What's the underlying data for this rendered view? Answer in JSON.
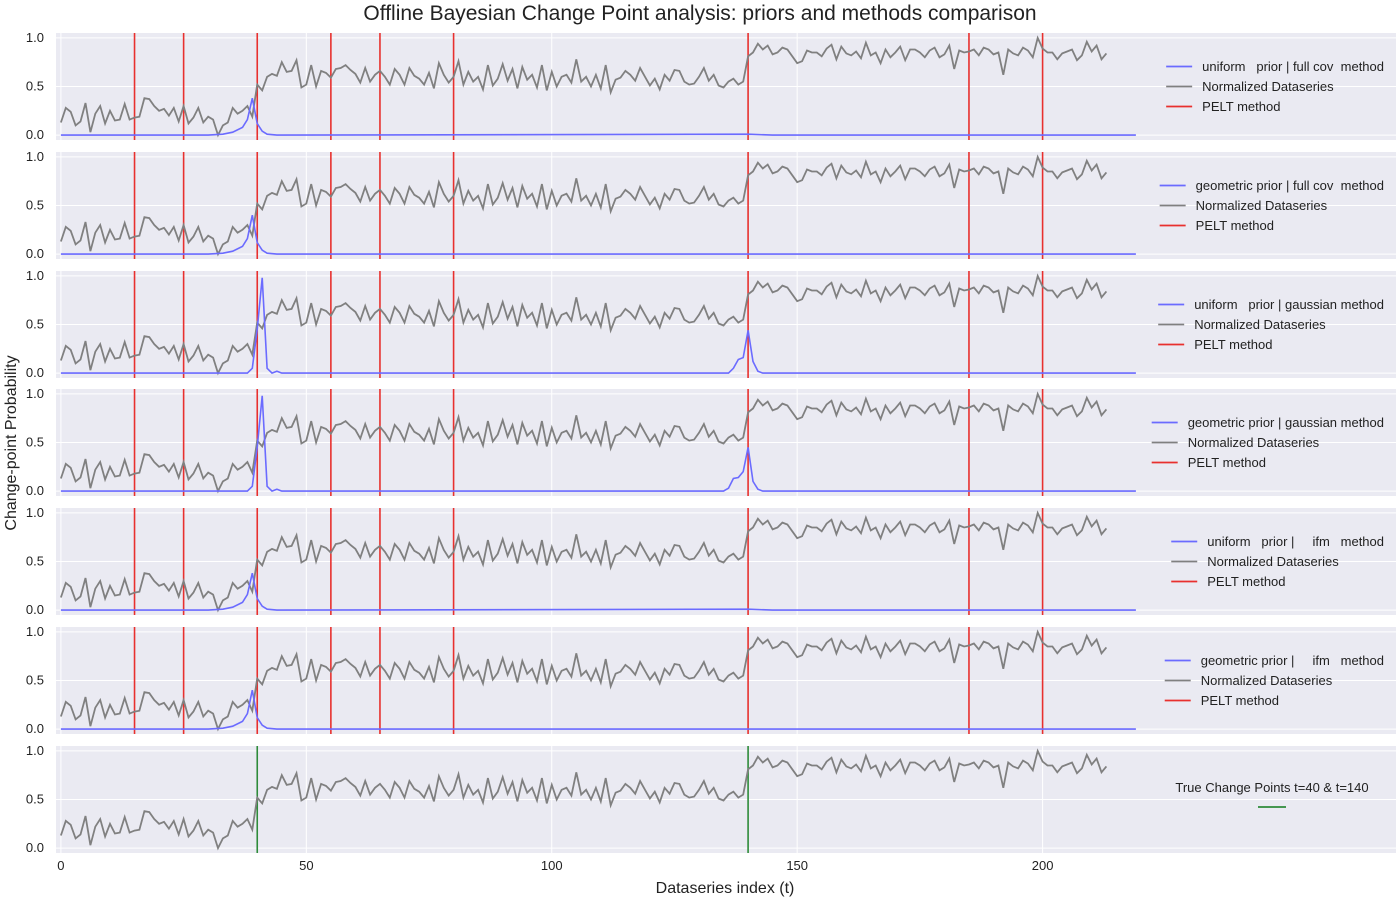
{
  "chart_data": {
    "type": "line",
    "title": "Offline Bayesian Change Point analysis: priors and methods comparison",
    "xlabel": "Dataseries index (t)",
    "ylabel": "Change-point Probability",
    "xlim": [
      -1,
      272
    ],
    "ylim": [
      -0.05,
      1.05
    ],
    "x_ticks": [
      0,
      50,
      100,
      150,
      200
    ],
    "y_ticks": [
      0.0,
      0.5,
      1.0
    ],
    "y_tick_labels": [
      "0.0",
      "0.5",
      "1.0"
    ],
    "grid": true,
    "colors": {
      "probability": "#6b6bff",
      "dataseries": "#808080",
      "pelt": "#e8302e",
      "true_cp": "#2e8b3a",
      "panel_bg": "#eaeaf2",
      "grid": "#ffffff"
    },
    "normalized_series": [
      0.13,
      0.28,
      0.24,
      0.1,
      0.14,
      0.33,
      0.03,
      0.22,
      0.3,
      0.12,
      0.25,
      0.15,
      0.16,
      0.32,
      0.16,
      0.18,
      0.19,
      0.38,
      0.37,
      0.3,
      0.25,
      0.27,
      0.2,
      0.28,
      0.14,
      0.3,
      0.12,
      0.18,
      0.28,
      0.13,
      0.19,
      0.16,
      0.0,
      0.1,
      0.13,
      0.28,
      0.22,
      0.25,
      0.3,
      0.19,
      0.52,
      0.46,
      0.6,
      0.63,
      0.61,
      0.75,
      0.65,
      0.66,
      0.77,
      0.49,
      0.52,
      0.72,
      0.5,
      0.66,
      0.64,
      0.59,
      0.68,
      0.69,
      0.72,
      0.67,
      0.63,
      0.54,
      0.69,
      0.55,
      0.62,
      0.66,
      0.6,
      0.52,
      0.68,
      0.62,
      0.52,
      0.69,
      0.61,
      0.58,
      0.52,
      0.64,
      0.48,
      0.74,
      0.62,
      0.54,
      0.6,
      0.76,
      0.52,
      0.65,
      0.55,
      0.6,
      0.47,
      0.72,
      0.51,
      0.58,
      0.73,
      0.56,
      0.68,
      0.48,
      0.7,
      0.57,
      0.62,
      0.49,
      0.72,
      0.46,
      0.65,
      0.5,
      0.6,
      0.62,
      0.54,
      0.78,
      0.55,
      0.6,
      0.5,
      0.62,
      0.48,
      0.72,
      0.44,
      0.57,
      0.59,
      0.66,
      0.62,
      0.56,
      0.69,
      0.6,
      0.51,
      0.58,
      0.47,
      0.62,
      0.56,
      0.67,
      0.66,
      0.55,
      0.52,
      0.53,
      0.6,
      0.69,
      0.56,
      0.62,
      0.51,
      0.49,
      0.55,
      0.58,
      0.52,
      0.55,
      0.81,
      0.85,
      0.94,
      0.88,
      0.92,
      0.83,
      0.85,
      0.9,
      0.88,
      0.81,
      0.74,
      0.76,
      0.87,
      0.85,
      0.85,
      0.81,
      0.89,
      0.93,
      0.78,
      0.91,
      0.84,
      0.82,
      0.86,
      0.79,
      0.95,
      0.82,
      0.85,
      0.74,
      0.88,
      0.8,
      0.85,
      0.91,
      0.77,
      0.88,
      0.88,
      0.85,
      0.8,
      0.87,
      0.9,
      0.8,
      0.83,
      0.92,
      0.68,
      0.87,
      0.85,
      0.86,
      0.88,
      0.82,
      0.9,
      0.88,
      0.83,
      0.85,
      0.62,
      0.88,
      0.84,
      0.82,
      0.9,
      0.87,
      0.8,
      1.0,
      0.89,
      0.85,
      0.85,
      0.78,
      0.84,
      0.86,
      0.88,
      0.77,
      0.82,
      0.96,
      0.86,
      0.92,
      0.78,
      0.84
    ],
    "panels": [
      {
        "name": "uniform prior | full cov method",
        "legend": [
          "uniform   prior | full cov  method",
          "Normalized Dataseries",
          "PELT method"
        ],
        "probability": [
          [
            0,
            0.0
          ],
          [
            30,
            0.0
          ],
          [
            33,
            0.01
          ],
          [
            35,
            0.03
          ],
          [
            37,
            0.08
          ],
          [
            38,
            0.16
          ],
          [
            39,
            0.38
          ],
          [
            40,
            0.12
          ],
          [
            41,
            0.04
          ],
          [
            42,
            0.01
          ],
          [
            44,
            0.0
          ],
          [
            140,
            0.01
          ],
          [
            145,
            0.0
          ],
          [
            219,
            0.0
          ]
        ],
        "change_points": [
          15,
          25,
          40,
          55,
          65,
          80,
          140,
          185,
          200
        ]
      },
      {
        "name": "geometric prior | full cov method",
        "legend": [
          "geometric prior | full cov  method",
          "Normalized Dataseries",
          "PELT method"
        ],
        "probability": [
          [
            0,
            0.0
          ],
          [
            30,
            0.0
          ],
          [
            33,
            0.01
          ],
          [
            35,
            0.03
          ],
          [
            37,
            0.08
          ],
          [
            38,
            0.16
          ],
          [
            39,
            0.4
          ],
          [
            40,
            0.12
          ],
          [
            41,
            0.04
          ],
          [
            42,
            0.01
          ],
          [
            44,
            0.0
          ],
          [
            219,
            0.0
          ]
        ],
        "change_points": [
          15,
          25,
          40,
          55,
          65,
          80,
          140,
          185,
          200
        ]
      },
      {
        "name": "uniform prior | gaussian method",
        "legend": [
          "uniform   prior | gaussian method",
          "Normalized Dataseries",
          "PELT method"
        ],
        "probability": [
          [
            0,
            0.0
          ],
          [
            38,
            0.0
          ],
          [
            39,
            0.05
          ],
          [
            40,
            0.45
          ],
          [
            41,
            0.98
          ],
          [
            42,
            0.05
          ],
          [
            43,
            0.0
          ],
          [
            44,
            0.02
          ],
          [
            45,
            0.0
          ],
          [
            136,
            0.0
          ],
          [
            137,
            0.05
          ],
          [
            138,
            0.14
          ],
          [
            139,
            0.16
          ],
          [
            140,
            0.44
          ],
          [
            141,
            0.12
          ],
          [
            142,
            0.02
          ],
          [
            143,
            0.0
          ],
          [
            219,
            0.0
          ]
        ],
        "change_points": [
          15,
          25,
          40,
          55,
          65,
          80,
          140,
          185,
          200
        ]
      },
      {
        "name": "geometric prior | gaussian method",
        "legend": [
          "geometric prior | gaussian method",
          "Normalized Dataseries",
          "PELT method"
        ],
        "probability": [
          [
            0,
            0.0
          ],
          [
            38,
            0.0
          ],
          [
            39,
            0.05
          ],
          [
            40,
            0.45
          ],
          [
            41,
            0.98
          ],
          [
            42,
            0.05
          ],
          [
            43,
            0.0
          ],
          [
            44,
            0.02
          ],
          [
            45,
            0.0
          ],
          [
            135,
            0.0
          ],
          [
            136,
            0.03
          ],
          [
            137,
            0.13
          ],
          [
            138,
            0.14
          ],
          [
            139,
            0.2
          ],
          [
            140,
            0.45
          ],
          [
            141,
            0.1
          ],
          [
            142,
            0.02
          ],
          [
            143,
            0.0
          ],
          [
            219,
            0.0
          ]
        ],
        "change_points": [
          15,
          25,
          40,
          55,
          65,
          80,
          140,
          185,
          200
        ]
      },
      {
        "name": "uniform prior | ifm method",
        "legend": [
          "uniform   prior |     ifm   method",
          "Normalized Dataseries",
          "PELT method"
        ],
        "probability": [
          [
            0,
            0.0
          ],
          [
            30,
            0.0
          ],
          [
            33,
            0.01
          ],
          [
            35,
            0.03
          ],
          [
            37,
            0.08
          ],
          [
            38,
            0.16
          ],
          [
            39,
            0.38
          ],
          [
            40,
            0.12
          ],
          [
            41,
            0.04
          ],
          [
            42,
            0.01
          ],
          [
            44,
            0.0
          ],
          [
            140,
            0.01
          ],
          [
            145,
            0.0
          ],
          [
            219,
            0.0
          ]
        ],
        "change_points": [
          15,
          25,
          40,
          55,
          65,
          80,
          140,
          185,
          200
        ]
      },
      {
        "name": "geometric prior | ifm method",
        "legend": [
          "geometric prior |     ifm   method",
          "Normalized Dataseries",
          "PELT method"
        ],
        "probability": [
          [
            0,
            0.0
          ],
          [
            30,
            0.0
          ],
          [
            33,
            0.01
          ],
          [
            35,
            0.03
          ],
          [
            37,
            0.08
          ],
          [
            38,
            0.16
          ],
          [
            39,
            0.4
          ],
          [
            40,
            0.12
          ],
          [
            41,
            0.04
          ],
          [
            42,
            0.01
          ],
          [
            44,
            0.0
          ],
          [
            219,
            0.0
          ]
        ],
        "change_points": [
          15,
          25,
          40,
          55,
          65,
          80,
          140,
          185,
          200
        ]
      },
      {
        "name": "true change points",
        "legend": [
          "True Change Points t=40 & t=140"
        ],
        "probability": [],
        "change_points": [],
        "true_change_points": [
          40,
          140
        ]
      }
    ]
  }
}
